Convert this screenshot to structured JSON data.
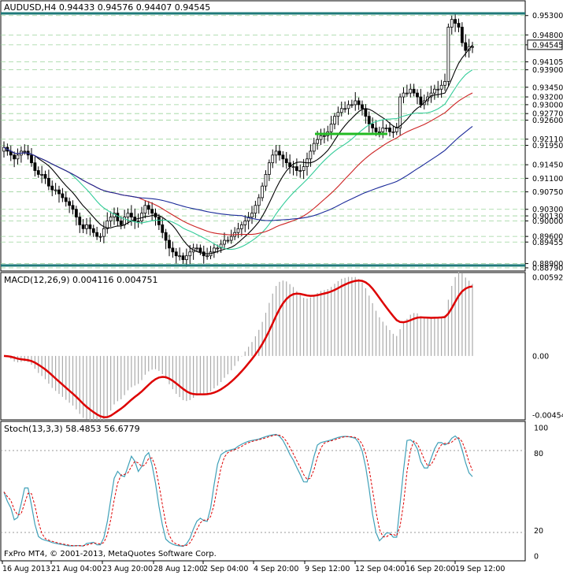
{
  "main_panel": {
    "header": "AUDUSD,H4  0.94433 0.94576 0.94407 0.94545",
    "price_ticks": [
      "0.95300",
      "0.94800",
      "0.94545",
      "0.94105",
      "0.93900",
      "0.93450",
      "0.93200",
      "0.93000",
      "0.92770",
      "0.92600",
      "0.92110",
      "0.91950",
      "0.91450",
      "0.91100",
      "0.90750",
      "0.90300",
      "0.90130",
      "0.90000",
      "0.89455",
      "0.89600",
      "0.88900",
      "0.88790"
    ],
    "levels": {
      "resistance": 0.953,
      "support": 0.889,
      "green_segment": 0.9233
    },
    "current_price": "0.94545",
    "colors": {
      "level_line": "#1f7a7a",
      "grid": "#8fd18f",
      "candle": "#000000",
      "ma_black": "#000000",
      "ma_green": "#33cc99",
      "ma_red": "#cc2222",
      "ma_blue": "#1a2a99",
      "green_segment": "#22bb22"
    }
  },
  "macd_panel": {
    "header": "MACD(12,26,9) 0.004116 0.004751",
    "ticks": [
      "0.005928",
      "0.00",
      "-0.004544"
    ],
    "colors": {
      "histogram": "#aaaaaa",
      "signal": "#dd0000"
    }
  },
  "stoch_panel": {
    "header": "Stoch(13,3,3) 58.4853 56.6779",
    "ticks": [
      "100",
      "80",
      "20",
      "0"
    ],
    "colors": {
      "main": "#3fa0b8",
      "signal": "#dd0000"
    }
  },
  "copyright": "FxPro MT4, © 2001-2013, MetaQuotes Software Corp.",
  "time_axis": [
    "16 Aug 2013",
    "21 Aug 04:00",
    "23 Aug 20:00",
    "28 Aug 12:00",
    "2 Sep 04:00",
    "4 Sep 20:00",
    "9 Sep 12:00",
    "12 Sep 04:00",
    "16 Sep 20:00",
    "19 Sep 12:00"
  ],
  "chart_data": {
    "type": "candlestick",
    "closes": [
      0.919,
      0.918,
      0.917,
      0.916,
      0.917,
      0.918,
      0.918,
      0.917,
      0.915,
      0.913,
      0.912,
      0.912,
      0.911,
      0.909,
      0.908,
      0.908,
      0.907,
      0.906,
      0.905,
      0.904,
      0.903,
      0.901,
      0.899,
      0.898,
      0.899,
      0.898,
      0.897,
      0.896,
      0.896,
      0.898,
      0.9,
      0.901,
      0.902,
      0.9,
      0.899,
      0.901,
      0.902,
      0.901,
      0.9,
      0.9,
      0.902,
      0.904,
      0.903,
      0.902,
      0.901,
      0.899,
      0.897,
      0.895,
      0.893,
      0.892,
      0.891,
      0.891,
      0.89,
      0.891,
      0.892,
      0.893,
      0.893,
      0.892,
      0.891,
      0.891,
      0.892,
      0.893,
      0.893,
      0.894,
      0.895,
      0.895,
      0.896,
      0.897,
      0.898,
      0.899,
      0.9,
      0.901,
      0.902,
      0.904,
      0.906,
      0.909,
      0.912,
      0.915,
      0.917,
      0.918,
      0.917,
      0.916,
      0.915,
      0.914,
      0.914,
      0.913,
      0.913,
      0.914,
      0.916,
      0.918,
      0.92,
      0.921,
      0.922,
      0.922,
      0.923,
      0.925,
      0.927,
      0.928,
      0.929,
      0.929,
      0.93,
      0.93,
      0.931,
      0.93,
      0.929,
      0.927,
      0.925,
      0.924,
      0.923,
      0.923,
      0.924,
      0.924,
      0.923,
      0.923,
      0.924,
      0.932,
      0.933,
      0.933,
      0.934,
      0.933,
      0.932,
      0.93,
      0.931,
      0.932,
      0.933,
      0.934,
      0.934,
      0.935,
      0.936,
      0.95,
      0.952,
      0.951,
      0.95,
      0.946,
      0.944,
      0.945,
      0.945
    ],
    "ylim": [
      0.8879,
      0.9562
    ]
  }
}
